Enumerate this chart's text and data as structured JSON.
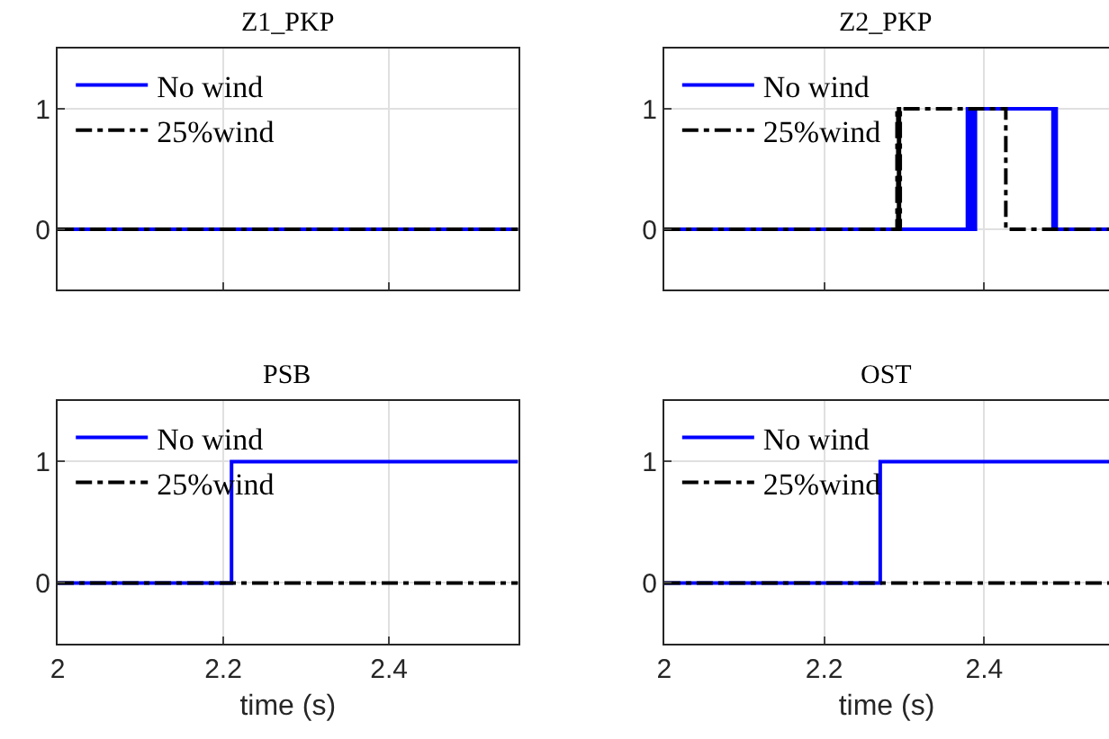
{
  "chart_data": [
    {
      "type": "step",
      "title": "Z1_PKP",
      "xlim": [
        2,
        2.556
      ],
      "xticks": [
        2,
        2.2,
        2.4
      ],
      "ylim": [
        -0.5,
        1.5
      ],
      "yticks": [
        0,
        1
      ],
      "grid": true,
      "legend": "top left",
      "tick_labels": "y",
      "series": [
        {
          "name": "No wind",
          "color": "#0000ff",
          "line_style": "solid",
          "x": [
            2,
            2.556
          ],
          "values": [
            0,
            0
          ]
        },
        {
          "name": "25%wind",
          "color": "#000000",
          "line_style": "dashed",
          "x": [
            2,
            2.556
          ],
          "values": [
            0,
            0
          ]
        }
      ]
    },
    {
      "type": "step",
      "title": "Z2_PKP",
      "xlim": [
        2,
        2.556
      ],
      "xticks": [
        2,
        2.2,
        2.4
      ],
      "ylim": [
        -0.5,
        1.5
      ],
      "yticks": [
        0,
        1
      ],
      "grid": true,
      "legend": "top left",
      "tick_labels": "y",
      "series": [
        {
          "name": "No wind",
          "color": "#0000ff",
          "line_style": "solid",
          "x": [
            2,
            2.379,
            2.382,
            2.384,
            2.387,
            2.389,
            2.486,
            2.488,
            2.49,
            2.556
          ],
          "values": [
            0,
            1,
            0,
            1,
            0,
            1,
            0,
            1,
            0,
            0
          ]
        },
        {
          "name": "25%wind",
          "color": "#000000",
          "line_style": "dashed",
          "x": [
            2,
            2.291,
            2.292,
            2.293,
            2.294,
            2.295,
            2.427,
            2.556
          ],
          "values": [
            0,
            1,
            0,
            1,
            0,
            1,
            0,
            0
          ]
        }
      ]
    },
    {
      "type": "step",
      "title": "PSB",
      "xlabel": "time (s)",
      "xlim": [
        2,
        2.556
      ],
      "xticks": [
        2,
        2.2,
        2.4
      ],
      "ylim": [
        -0.5,
        1.5
      ],
      "yticks": [
        0,
        1
      ],
      "grid": true,
      "legend": "top left",
      "series": [
        {
          "name": "No wind",
          "color": "#0000ff",
          "line_style": "solid",
          "x": [
            2,
            2.21,
            2.556
          ],
          "values": [
            0,
            1,
            1
          ]
        },
        {
          "name": "25%wind",
          "color": "#000000",
          "line_style": "dashed",
          "x": [
            2,
            2.556
          ],
          "values": [
            0,
            0
          ]
        }
      ]
    },
    {
      "type": "step",
      "title": "OST",
      "xlabel": "time (s)",
      "xlim": [
        2,
        2.556
      ],
      "xticks": [
        2,
        2.2,
        2.4
      ],
      "ylim": [
        -0.5,
        1.5
      ],
      "yticks": [
        0,
        1
      ],
      "grid": true,
      "legend": "top left",
      "series": [
        {
          "name": "No wind",
          "color": "#0000ff",
          "line_style": "solid",
          "x": [
            2,
            2.27,
            2.556
          ],
          "values": [
            0,
            1,
            1
          ]
        },
        {
          "name": "25%wind",
          "color": "#000000",
          "line_style": "dashed",
          "x": [
            2,
            2.556
          ],
          "values": [
            0,
            0
          ]
        }
      ]
    }
  ]
}
